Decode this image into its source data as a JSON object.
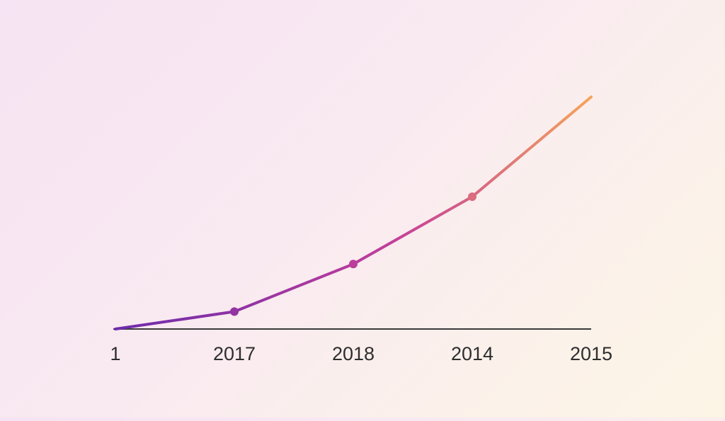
{
  "chart_data": {
    "type": "line",
    "categories": [
      "1",
      "2017",
      "2018",
      "2014",
      "2015"
    ],
    "values": [
      0,
      7.5,
      28,
      57,
      100
    ],
    "ylim": [
      0,
      100
    ],
    "grid": false,
    "legend": "none",
    "marker_indices": [
      1,
      2,
      3
    ],
    "colors": {
      "gradient_start": "#6c2bab",
      "gradient_mid": "#c43f9a",
      "gradient_end": "#f5a55a",
      "axis": "#3a3a3a",
      "tick_label": "#2e2e2e"
    }
  }
}
